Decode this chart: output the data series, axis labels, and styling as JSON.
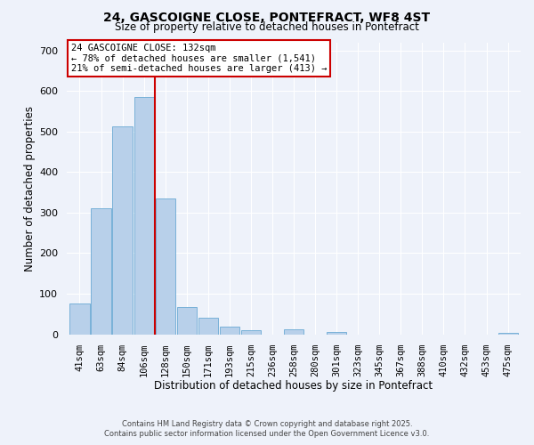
{
  "title": "24, GASCOIGNE CLOSE, PONTEFRACT, WF8 4ST",
  "subtitle": "Size of property relative to detached houses in Pontefract",
  "xlabel": "Distribution of detached houses by size in Pontefract",
  "ylabel": "Number of detached properties",
  "bar_labels": [
    "41sqm",
    "63sqm",
    "84sqm",
    "106sqm",
    "128sqm",
    "150sqm",
    "171sqm",
    "193sqm",
    "215sqm",
    "236sqm",
    "258sqm",
    "280sqm",
    "301sqm",
    "323sqm",
    "345sqm",
    "367sqm",
    "388sqm",
    "410sqm",
    "432sqm",
    "453sqm",
    "475sqm"
  ],
  "bar_values": [
    75,
    310,
    513,
    585,
    335,
    68,
    40,
    18,
    10,
    0,
    12,
    0,
    5,
    0,
    0,
    0,
    0,
    0,
    0,
    0,
    3
  ],
  "bar_color": "#b8d0ea",
  "bar_edge_color": "#6aaad4",
  "vline_color": "#cc0000",
  "annotation_title": "24 GASCOIGNE CLOSE: 132sqm",
  "annotation_line1": "← 78% of detached houses are smaller (1,541)",
  "annotation_line2": "21% of semi-detached houses are larger (413) →",
  "annotation_box_edgecolor": "#cc0000",
  "ylim": [
    0,
    720
  ],
  "yticks": [
    0,
    100,
    200,
    300,
    400,
    500,
    600,
    700
  ],
  "footer1": "Contains HM Land Registry data © Crown copyright and database right 2025.",
  "footer2": "Contains public sector information licensed under the Open Government Licence v3.0.",
  "background_color": "#eef2fa",
  "grid_color": "#ffffff"
}
